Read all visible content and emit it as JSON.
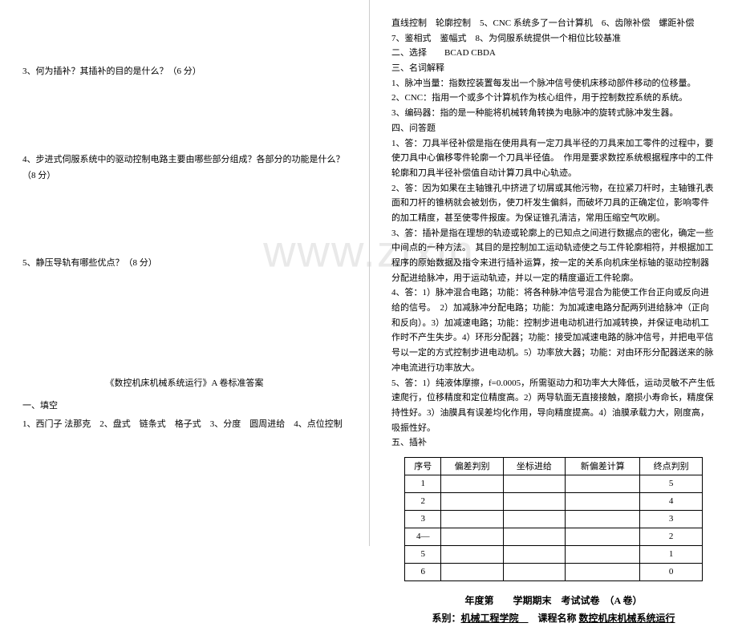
{
  "watermark": "www.zixin",
  "left": {
    "q3": "3、何为插补？其插补的目的是什么？（6 分）",
    "q4": "4、步进式伺服系统中的驱动控制电路主要由哪些部分组成？各部分的功能是什么？（8 分）",
    "q5": "5、静压导轨有哪些优点？（8 分）",
    "answer_key_title": "《数控机床机械系统运行》A 卷标准答案",
    "sec1_title": "一、填空",
    "sec1_line": "1、西门子 法那克　2、盘式　链条式　格子式　3、分度　圆周进给　4、点位控制"
  },
  "right": {
    "top_lines": [
      "直线控制　轮廓控制　5、CNC 系统多了一台计算机　6、齿隙补偿　螺距补偿　7、鉴相式　鉴幅式　8、为伺服系统提供一个相位比较基准",
      "二、选择　　BCAD CBDA",
      "三、名词解释",
      "1、脉冲当量：指数控装置每发出一个脉冲信号使机床移动部件移动的位移量。",
      "2、CNC：指用一个或多个计算机作为核心组件，用于控制数控系统的系统。",
      "3、编码器：指的是一种能将机械转角转换为电脉冲的旋转式脉冲发生器。",
      "四、问答题",
      "1、答：刀具半径补偿是指在使用具有一定刀具半径的刀具来加工零件的过程中，要使刀具中心偏移零件轮廓一个刀具半径值。　作用是要求数控系统根据程序中的工件轮廓和刀具半径补偿值自动计算刀具中心轨迹。",
      "2、答：因为如果在主轴锥孔中挤进了切屑或其他污物，在拉紧刀杆时，主轴锥孔表面和刀杆的锥柄就会被划伤，使刀杆发生偏斜，而破坏刀具的正确定位，影响零件的加工精度，甚至使零件报废。为保证锥孔清洁，常用压缩空气吹刷。",
      "3、答：插补是指在理想的轨迹或轮廓上的已知点之间进行数据点的密化，确定一些中间点的一种方法。　其目的是控制加工运动轨迹使之与工件轮廓相符，并根据加工程序的原始数据及指令来进行插补运算，按一定的关系向机床坐标轴的驱动控制器分配进给脉冲，用于运动轨迹，并以一定的精度逼近工件轮廓。",
      "4、答：1）脉冲混合电路；功能：将各种脉冲信号混合为能使工作台正向或反向进给的信号。　2）加减脉冲分配电路；功能：为加减速电路分配两列进给脉冲（正向和反向）。3）加减速电路；功能：控制步进电动机进行加减转换，并保证电动机工作时不产生失步。4）环形分配器；功能：接受加减速电路的脉冲信号，并把电平信号以一定的方式控制步进电动机。5）功率放大器；功能：对由环形分配器送来的脉冲电流进行功率放大。",
      "5、答：1）纯液体摩擦，f=0.0005，所需驱动力和功率大大降低，运动灵敏不产生低速爬行，位移精度和定位精度高。2）两导轨面无直接接触，磨损小寿命长，精度保持性好。3）油膜具有误差均化作用，导向精度提高。4）油膜承载力大，刚度高，吸振性好。",
      "五、插补"
    ],
    "table": {
      "headers": [
        "序号",
        "偏差判别",
        "坐标进给",
        "新偏差计算",
        "终点判别"
      ],
      "rows": [
        [
          "1",
          "",
          "",
          "",
          "5"
        ],
        [
          "2",
          "",
          "",
          "",
          "4"
        ],
        [
          "3",
          "",
          "",
          "",
          "3"
        ],
        [
          "4—",
          "",
          "",
          "",
          "2"
        ],
        [
          "5",
          "",
          "",
          "",
          "1"
        ],
        [
          "6",
          "",
          "",
          "",
          "0"
        ]
      ]
    },
    "footer_line1": "年度第　　学期期末　考试试卷　（A 卷）",
    "footer_line2_prefix": "系别：",
    "footer_line2_dept": "机械工程学院　",
    "footer_line2_mid": "　课程名称 ",
    "footer_line2_course": "数控机床机械系统运行"
  }
}
